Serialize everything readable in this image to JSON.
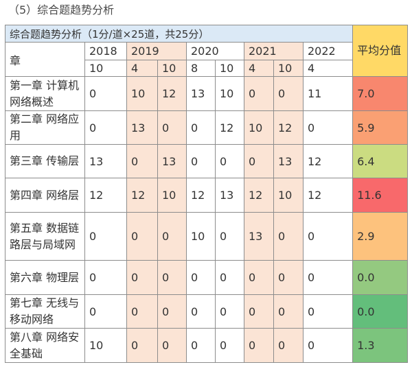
{
  "heading": "（5）综合题趋势分析",
  "table": {
    "title": "综合题趋势分析（1分/道×25道，共25分）",
    "chapter_header": "章",
    "avg_header": "平均分值",
    "years": [
      {
        "label": "2018",
        "span": 1,
        "highlight": false
      },
      {
        "label": "2019",
        "span": 2,
        "highlight": true
      },
      {
        "label": "2020",
        "span": 2,
        "highlight": false
      },
      {
        "label": "2021",
        "span": 2,
        "highlight": true
      },
      {
        "label": "2022",
        "span": 1,
        "highlight": false
      }
    ],
    "months": [
      "10",
      "4",
      "10",
      "8",
      "10",
      "4",
      "10",
      "4"
    ],
    "month_highlight": [
      false,
      true,
      true,
      false,
      false,
      true,
      true,
      false
    ],
    "rows": [
      {
        "chapter": "第一章 计算机网络概述",
        "values": [
          "0",
          "10",
          "12",
          "13",
          "10",
          "0",
          "0",
          "11"
        ],
        "avg": "7.0",
        "avg_color": "#f8876e",
        "height": 50
      },
      {
        "chapter": "第二章 网络应用",
        "values": [
          "0",
          "13",
          "0",
          "0",
          "12",
          "10",
          "12",
          "0"
        ],
        "avg": "5.9",
        "avg_color": "#faa073",
        "height": 48
      },
      {
        "chapter": "第三章 传输层",
        "values": [
          "13",
          "0",
          "13",
          "0",
          "0",
          "0",
          "13",
          "12"
        ],
        "avg": "6.4",
        "avg_color": "#cbdc81",
        "height": 49
      },
      {
        "chapter": "第四章 网络层",
        "values": [
          "12",
          "12",
          "10",
          "12",
          "13",
          "12",
          "10",
          "12"
        ],
        "avg": "11.6",
        "avg_color": "#f8696b",
        "height": 50
      },
      {
        "chapter": "第五章 数据链路层与局域网",
        "values": [
          "0",
          "0",
          "0",
          "10",
          "0",
          "13",
          "0",
          "0"
        ],
        "avg": "2.9",
        "avg_color": "#fdc27d",
        "height": 70
      },
      {
        "chapter": "第六章 物理层",
        "values": [
          "0",
          "0",
          "0",
          "0",
          "0",
          "0",
          "0",
          "0"
        ],
        "avg": "0.0",
        "avg_color": "#94c980",
        "height": 50
      },
      {
        "chapter": "第七章 无线与移动网络",
        "values": [
          "0",
          "0",
          "0",
          "0",
          "0",
          "0",
          "0",
          "0"
        ],
        "avg": "0.0",
        "avg_color": "#63be7b",
        "height": 48
      },
      {
        "chapter": "第八章 网络安全基础",
        "values": [
          "10",
          "0",
          "0",
          "0",
          "0",
          "0",
          "0",
          "0"
        ],
        "avg": "1.3",
        "avg_color": "#7cc47d",
        "height": 50
      }
    ]
  }
}
